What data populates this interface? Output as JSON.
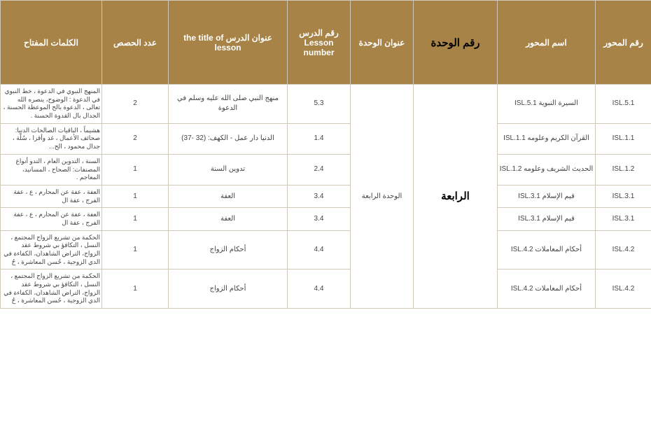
{
  "columns": {
    "axis_no": "رقم المحور",
    "axis_name": "اسم المحور",
    "unit_no": "رقم الوحدة",
    "unit_title": "عنوان الوحدة",
    "lesson_no": "رقم الدرس  Lesson number",
    "lesson_title": "عنوان الدرس  the title of lesson",
    "sessions": "عدد الحصص",
    "keywords": "الكلمات المفتاح"
  },
  "shared": {
    "unit_no": "الرابعة",
    "unit_title": "الوحدة الرابعة"
  },
  "rows": [
    {
      "axis_no": "ISL.5.1",
      "axis_name": "السيرة النبوية ISL.5.1",
      "lesson_no": "5.3",
      "lesson_title": "منهج النبي صلى الله عليه وسلم في الدعوة",
      "sessions": "2",
      "keywords": "المنهج النبوي في الدعوة ، خط النبوي في الدعوة : الوضوح، ينصره الله تعالى ، الدعوة بالح الموعظة الحسنة ، الجدال بال القدوة الحسنة ."
    },
    {
      "axis_no": "ISL.1.1",
      "axis_name": "القرآن الكريم وعلومه ISL.1.1",
      "lesson_no": "1.4",
      "lesson_title": "الدنيا دار عمل - الكهف: (32 -37)",
      "sessions": "2",
      "keywords": "هشيماً ، الباقيات الصالحات الدنيا: صحائف الأعمال ، غد وأقزا ، سُلّة ، جدال محمود ، الح..."
    },
    {
      "axis_no": "ISL.1.2",
      "axis_name": "الحديث الشريف وعلومه ISL.1.2",
      "lesson_no": "2.4",
      "lesson_title": "تدوين السنة",
      "sessions": "1",
      "keywords": "السنة ، التدوين العام ، التدو أنواع المصنفات: الصحاح ، المسانيد، المعاجم ."
    },
    {
      "axis_no": "ISL.3.1",
      "axis_name": "قيم الإسلام ISL.3.1",
      "lesson_no": "3.4",
      "lesson_title": "العفة",
      "sessions": "1",
      "keywords": "العفة ، عفة عن المحارم ، ع ، عفة الفرج ، عفة ال"
    },
    {
      "axis_no": "ISL.3.1",
      "axis_name": "قيم الإسلام ISL.3.1",
      "lesson_no": "3.4",
      "lesson_title": "العفة",
      "sessions": "1",
      "keywords": "العفة ، عفة عن المحارم ، ع ، عفة الفرج ، عفة ال"
    },
    {
      "axis_no": "ISL.4.2",
      "axis_name": "أحكام المعاملات ISL.4.2",
      "lesson_no": "4.4",
      "lesson_title": "أحكام الزواج",
      "sessions": "1",
      "keywords": "الحكمة من تشريع الزواج المجتمع ، النسل ، التكافؤ بي شروط عقد الزواج، التراض الشاهدان، الكفاءة في الدي الزوجية ، حُسن المعاشرة ، حُ"
    },
    {
      "axis_no": "ISL.4.2",
      "axis_name": "أحكام المعاملات ISL.4.2",
      "lesson_no": "4.4",
      "lesson_title": "أحكام الزواج",
      "sessions": "1",
      "keywords": "الحكمة من تشريع الزواج المجتمع ، النسل ، التكافؤ بي شروط عقد الزواج، التراض الشاهدان، الكفاءة في الدي الزوجية ، حُسن المعاشرة ، حُ"
    }
  ]
}
